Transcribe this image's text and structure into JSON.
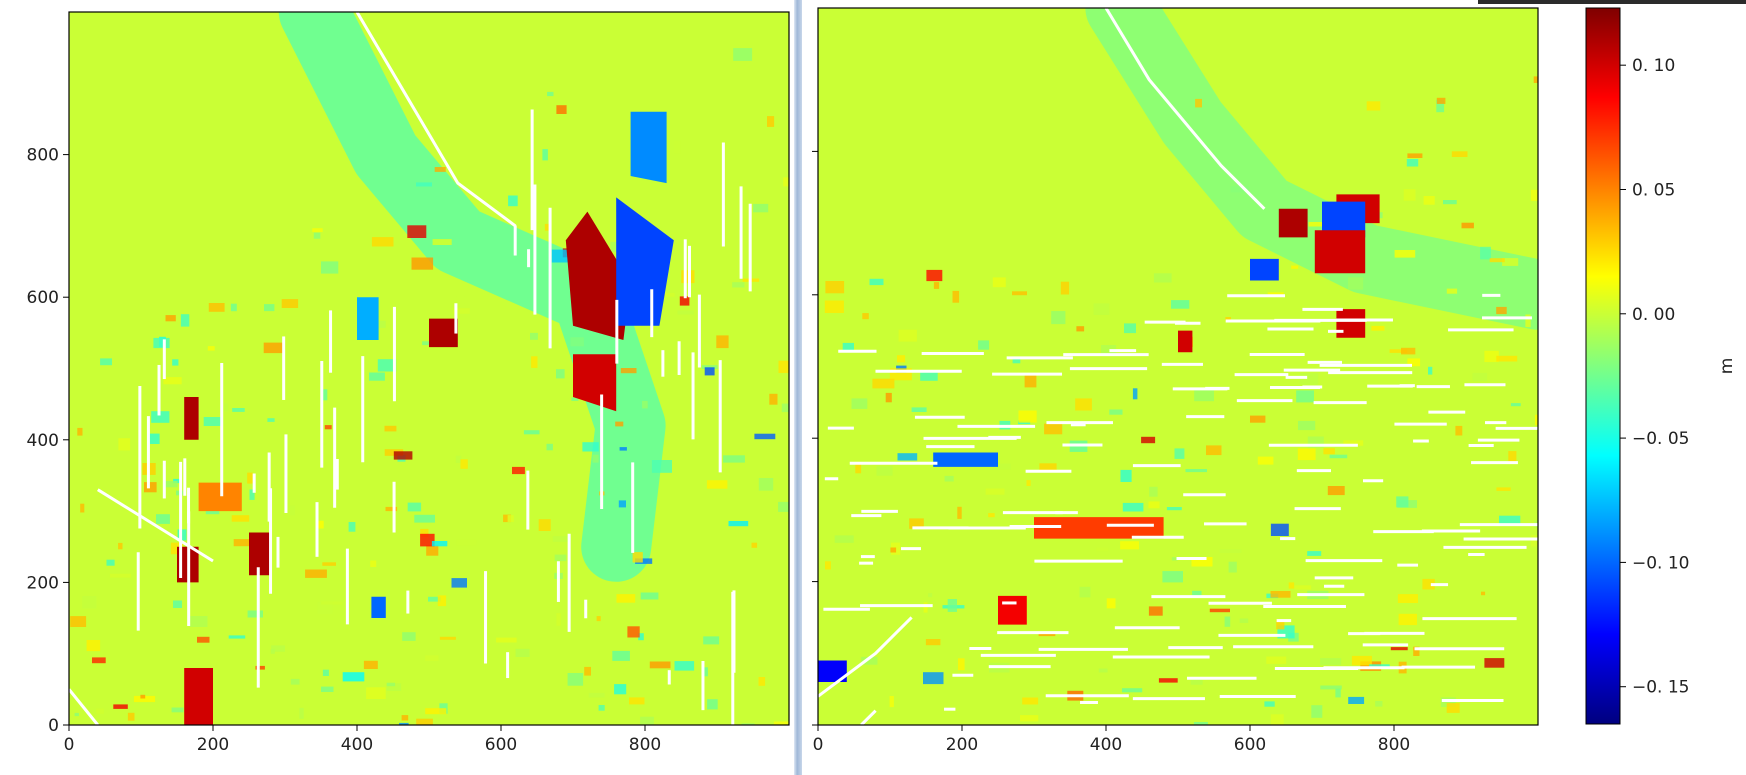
{
  "chart_data": [
    {
      "type": "heatmap",
      "panel": "left",
      "title": "",
      "xlabel": "",
      "ylabel": "",
      "xlim": [
        0,
        1000
      ],
      "ylim": [
        0,
        1000
      ],
      "x_ticks": [
        "0",
        "200",
        "400",
        "600",
        "800"
      ],
      "y_ticks": [
        "0",
        "200",
        "400",
        "600",
        "800"
      ],
      "background_value": 0.0,
      "features": [
        {
          "kind": "channel",
          "desc": "diagonal street band",
          "points": [
            [
              340,
              1000
            ],
            [
              440,
              800
            ],
            [
              540,
              680
            ],
            [
              720,
              600
            ],
            [
              780,
              420
            ],
            [
              760,
              250
            ]
          ],
          "value": -0.03
        },
        {
          "kind": "patch",
          "points": [
            [
              720,
              720
            ],
            [
              780,
              620
            ],
            [
              770,
              540
            ],
            [
              700,
              560
            ],
            [
              690,
              680
            ]
          ],
          "value": 0.11
        },
        {
          "kind": "patch",
          "points": [
            [
              760,
              740
            ],
            [
              840,
              680
            ],
            [
              820,
              560
            ],
            [
              760,
              560
            ]
          ],
          "value": -0.11
        },
        {
          "kind": "patch",
          "points": [
            [
              780,
              860
            ],
            [
              830,
              860
            ],
            [
              830,
              760
            ],
            [
              780,
              770
            ]
          ],
          "value": -0.09
        },
        {
          "kind": "patch",
          "points": [
            [
              700,
              520
            ],
            [
              760,
              520
            ],
            [
              760,
              440
            ],
            [
              700,
              460
            ]
          ],
          "value": 0.1
        },
        {
          "kind": "patch",
          "points": [
            [
              500,
              570
            ],
            [
              540,
              570
            ],
            [
              540,
              530
            ],
            [
              500,
              530
            ]
          ],
          "value": 0.11
        },
        {
          "kind": "patch",
          "points": [
            [
              400,
              600
            ],
            [
              430,
              600
            ],
            [
              430,
              540
            ],
            [
              400,
              540
            ]
          ],
          "value": -0.08
        },
        {
          "kind": "patch",
          "points": [
            [
              160,
              460
            ],
            [
              180,
              460
            ],
            [
              180,
              400
            ],
            [
              160,
              400
            ]
          ],
          "value": 0.11
        },
        {
          "kind": "patch",
          "points": [
            [
              150,
              250
            ],
            [
              180,
              250
            ],
            [
              180,
              200
            ],
            [
              150,
              200
            ]
          ],
          "value": 0.11
        },
        {
          "kind": "patch",
          "points": [
            [
              250,
              270
            ],
            [
              280,
              270
            ],
            [
              280,
              210
            ],
            [
              250,
              210
            ]
          ],
          "value": 0.11
        },
        {
          "kind": "patch",
          "points": [
            [
              160,
              80
            ],
            [
              200,
              80
            ],
            [
              200,
              0
            ],
            [
              160,
              0
            ]
          ],
          "value": 0.1
        },
        {
          "kind": "patch",
          "points": [
            [
              420,
              180
            ],
            [
              440,
              180
            ],
            [
              440,
              150
            ],
            [
              420,
              150
            ]
          ],
          "value": -0.1
        },
        {
          "kind": "patch",
          "points": [
            [
              180,
              340
            ],
            [
              240,
              340
            ],
            [
              240,
              300
            ],
            [
              180,
              300
            ]
          ],
          "value": 0.05
        }
      ]
    },
    {
      "type": "heatmap",
      "panel": "right",
      "title": "",
      "xlabel": "",
      "ylabel": "",
      "xlim": [
        0,
        1000
      ],
      "ylim": [
        0,
        1000
      ],
      "x_ticks": [
        "0",
        "200",
        "400",
        "600",
        "800"
      ],
      "y_ticks": [],
      "background_value": 0.0,
      "features": [
        {
          "kind": "channel",
          "desc": "diagonal street band",
          "points": [
            [
              420,
              1000
            ],
            [
              520,
              840
            ],
            [
              620,
              720
            ],
            [
              760,
              650
            ],
            [
              1000,
              600
            ]
          ],
          "value": -0.02
        },
        {
          "kind": "patch",
          "points": [
            [
              640,
              720
            ],
            [
              680,
              720
            ],
            [
              680,
              680
            ],
            [
              640,
              680
            ]
          ],
          "value": 0.11
        },
        {
          "kind": "patch",
          "points": [
            [
              720,
              740
            ],
            [
              780,
              740
            ],
            [
              780,
              700
            ],
            [
              720,
              700
            ]
          ],
          "value": 0.1
        },
        {
          "kind": "patch",
          "points": [
            [
              700,
              730
            ],
            [
              760,
              730
            ],
            [
              760,
              680
            ],
            [
              700,
              680
            ]
          ],
          "value": -0.11
        },
        {
          "kind": "patch",
          "points": [
            [
              690,
              690
            ],
            [
              760,
              690
            ],
            [
              760,
              630
            ],
            [
              690,
              630
            ]
          ],
          "value": 0.1
        },
        {
          "kind": "patch",
          "points": [
            [
              600,
              650
            ],
            [
              640,
              650
            ],
            [
              640,
              620
            ],
            [
              600,
              620
            ]
          ],
          "value": -0.11
        },
        {
          "kind": "patch",
          "points": [
            [
              720,
              580
            ],
            [
              760,
              580
            ],
            [
              760,
              540
            ],
            [
              720,
              540
            ]
          ],
          "value": 0.1
        },
        {
          "kind": "patch",
          "points": [
            [
              0,
              90
            ],
            [
              40,
              90
            ],
            [
              40,
              60
            ],
            [
              0,
              60
            ]
          ],
          "value": -0.13
        },
        {
          "kind": "patch",
          "points": [
            [
              250,
              180
            ],
            [
              290,
              180
            ],
            [
              290,
              140
            ],
            [
              250,
              140
            ]
          ],
          "value": 0.09
        },
        {
          "kind": "patch",
          "points": [
            [
              160,
              380
            ],
            [
              250,
              380
            ],
            [
              250,
              360
            ],
            [
              160,
              360
            ]
          ],
          "value": -0.1
        },
        {
          "kind": "patch",
          "points": [
            [
              500,
              550
            ],
            [
              520,
              550
            ],
            [
              520,
              520
            ],
            [
              500,
              520
            ]
          ],
          "value": 0.1
        },
        {
          "kind": "patch",
          "points": [
            [
              300,
              290
            ],
            [
              480,
              290
            ],
            [
              480,
              260
            ],
            [
              300,
              260
            ]
          ],
          "value": 0.07
        }
      ]
    }
  ],
  "colorbar": {
    "label": "m",
    "min": -0.165,
    "max": 0.123,
    "ticks": [
      {
        "value": 0.1,
        "label": "0. 10"
      },
      {
        "value": 0.05,
        "label": "0. 05"
      },
      {
        "value": 0.0,
        "label": "0. 00"
      },
      {
        "value": -0.05,
        "label": "−0. 05"
      },
      {
        "value": -0.1,
        "label": "−0. 10"
      },
      {
        "value": -0.15,
        "label": "−0. 15"
      }
    ],
    "colormap": "jet",
    "colors": [
      "#00007f",
      "#0000ff",
      "#0080ff",
      "#00ffff",
      "#80ff80",
      "#ffff00",
      "#ff8000",
      "#ff0000",
      "#7f0000"
    ]
  },
  "colors": {
    "background_field": "#b4f03c",
    "street_lines": "#ffffff",
    "axes": "#000000"
  }
}
